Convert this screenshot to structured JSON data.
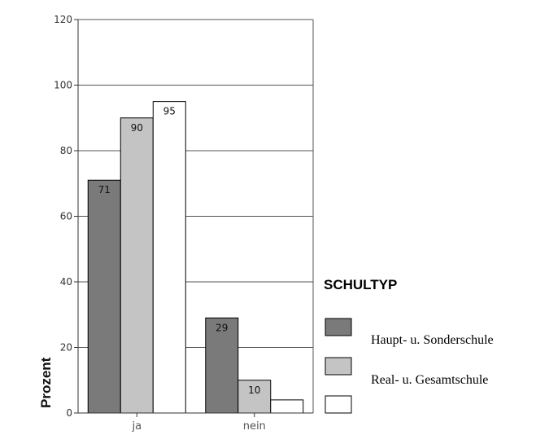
{
  "chart_data": {
    "type": "bar",
    "categories": [
      "ja",
      "nein"
    ],
    "ylabel": "Prozent",
    "ylim": [
      0,
      120
    ],
    "yticks": [
      "0",
      "20",
      "40",
      "60",
      "80",
      "100",
      "120"
    ],
    "grid": true,
    "legend_title": "SCHULTYP",
    "legend_position": "right",
    "legend": [
      {
        "color": "#7a7a7a",
        "text": ""
      },
      {
        "color": "#c4c4c4",
        "text": "Haupt- u. Sonderschule"
      },
      {
        "color": "#ffffff",
        "text": "Real- u. Gesamtschule"
      }
    ],
    "series": [
      {
        "color": "#7a7a7a",
        "values": [
          71,
          29
        ],
        "labels": [
          "71",
          "29"
        ]
      },
      {
        "color": "#c4c4c4",
        "values": [
          90,
          10
        ],
        "labels": [
          "90",
          "10"
        ]
      },
      {
        "color": "#ffffff",
        "values": [
          95,
          4
        ],
        "labels": [
          "95",
          ""
        ]
      }
    ]
  }
}
